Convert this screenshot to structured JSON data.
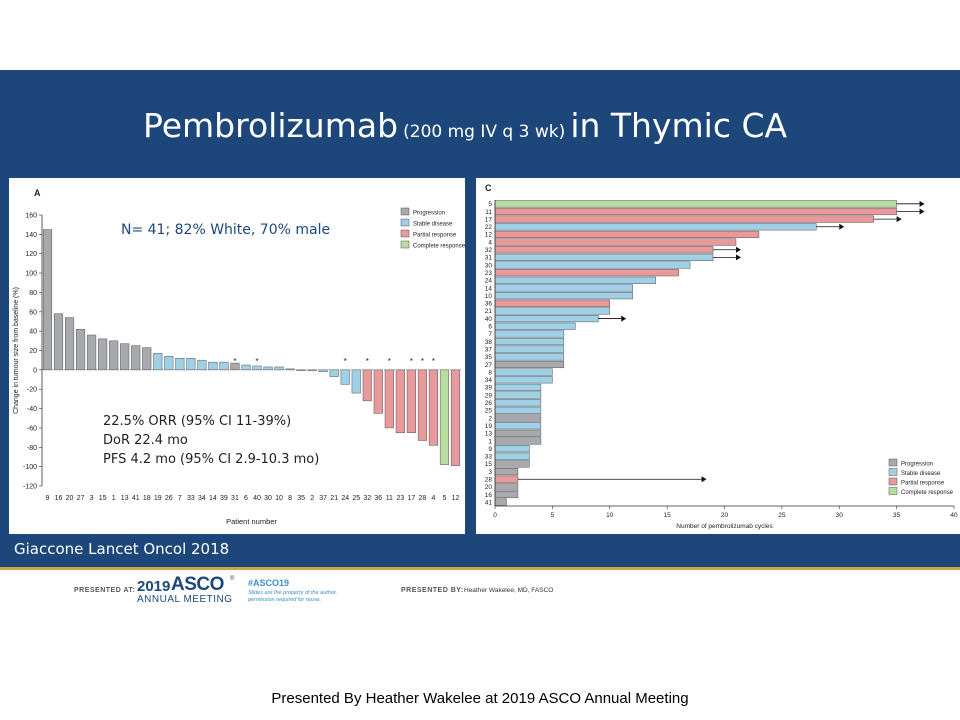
{
  "slide": {
    "title_main": "Pembrolizumab",
    "title_dose": "(200 mg IV q 3 wk)",
    "title_tail": "in Thymic CA",
    "citation": "Giaccone Lancet Oncol 2018",
    "footer": {
      "presented_at_label": "PRESENTED AT:",
      "asco_year": "2019",
      "asco_name": "ASCO",
      "asco_tm": "®",
      "asco_sub": "ANNUAL MEETING",
      "hashtag": "#ASCO19",
      "hashtag_note": "Slides are the property of the author, permission required for reuse.",
      "presented_by_label": "PRESENTED BY:",
      "presenter": "Heather Wakelee, MD, FASCO"
    },
    "caption": "Presented By Heather Wakelee at 2019 ASCO Annual Meeting",
    "annotations": {
      "n_line": "N= 41; 82% White, 70% male",
      "orr": "22.5% ORR (95% CI 11-39%)",
      "dor": "DoR 22.4 mo",
      "pfs": "PFS 4.2 mo (95% CI 2.9-10.3 mo)"
    },
    "colors": {
      "band": "#1d477a",
      "progression": "#a7a9ac",
      "stable": "#9fd0e6",
      "partial": "#e7999b",
      "complete": "#b9dca0"
    }
  },
  "chart_data": [
    {
      "type": "bar",
      "panel_label": "A",
      "ylabel": "Change in tumour size from baseline (%)",
      "xlabel": "Patient number",
      "ylim": [
        -120,
        160
      ],
      "yticks": [
        160,
        140,
        120,
        100,
        80,
        60,
        40,
        20,
        0,
        -20,
        -40,
        -60,
        -80,
        -100,
        -120
      ],
      "categories": [
        "9",
        "16",
        "20",
        "27",
        "3",
        "15",
        "1",
        "13",
        "41",
        "18",
        "19",
        "26",
        "7",
        "33",
        "34",
        "14",
        "39",
        "31",
        "6",
        "40",
        "30",
        "10",
        "8",
        "35",
        "2",
        "37",
        "21",
        "24",
        "25",
        "32",
        "36",
        "11",
        "23",
        "17",
        "28",
        "4",
        "5",
        "12"
      ],
      "values": [
        145,
        58,
        54,
        42,
        36,
        32,
        30,
        27,
        25,
        23,
        17,
        14,
        12,
        12,
        10,
        8,
        8,
        7,
        5,
        4,
        3,
        3,
        1,
        0,
        -1,
        -2,
        -7,
        -15,
        -24,
        -32,
        -45,
        -60,
        -65,
        -65,
        -73,
        -78,
        -98,
        -99
      ],
      "response": [
        "Progression",
        "Progression",
        "Progression",
        "Progression",
        "Progression",
        "Progression",
        "Progression",
        "Progression",
        "Progression",
        "Progression",
        "Stable disease",
        "Stable disease",
        "Stable disease",
        "Stable disease",
        "Stable disease",
        "Stable disease",
        "Stable disease",
        "Progression",
        "Stable disease",
        "Stable disease",
        "Stable disease",
        "Stable disease",
        "Stable disease",
        "Stable disease",
        "Stable disease",
        "Stable disease",
        "Stable disease",
        "Stable disease",
        "Stable disease",
        "Partial response",
        "Partial response",
        "Partial response",
        "Partial response",
        "Partial response",
        "Partial response",
        "Partial response",
        "Complete response",
        "Partial response"
      ],
      "asterisks": [
        "31",
        "40",
        "24",
        "32",
        "11",
        "17",
        "28",
        "4"
      ],
      "legend": [
        "Progression",
        "Stable disease",
        "Partial response",
        "Complete response"
      ],
      "legend_position": "top-right"
    },
    {
      "type": "bar",
      "orientation": "horizontal",
      "panel_label": "C",
      "xlabel": "Number of pembrolizumab cycles",
      "xlim": [
        0,
        40
      ],
      "xticks": [
        0,
        5,
        10,
        15,
        20,
        25,
        30,
        35,
        40
      ],
      "categories": [
        "5",
        "11",
        "17",
        "22",
        "12",
        "4",
        "32",
        "31",
        "30",
        "23",
        "24",
        "14",
        "10",
        "36",
        "21",
        "40",
        "6",
        "7",
        "38",
        "37",
        "35",
        "27",
        "8",
        "34",
        "39",
        "29",
        "26",
        "25",
        "2",
        "19",
        "13",
        "1",
        "9",
        "33",
        "15",
        "3",
        "28",
        "20",
        "16",
        "41"
      ],
      "values": [
        35,
        35,
        33,
        28,
        23,
        21,
        19,
        19,
        17,
        16,
        14,
        12,
        12,
        10,
        10,
        9,
        7,
        6,
        6,
        6,
        6,
        6,
        5,
        5,
        4,
        4,
        4,
        4,
        4,
        4,
        4,
        4,
        3,
        3,
        3,
        2,
        2,
        2,
        2,
        1
      ],
      "response": [
        "Complete response",
        "Partial response",
        "Partial response",
        "Stable disease",
        "Partial response",
        "Partial response",
        "Partial response",
        "Stable disease",
        "Stable disease",
        "Partial response",
        "Stable disease",
        "Stable disease",
        "Stable disease",
        "Partial response",
        "Stable disease",
        "Stable disease",
        "Stable disease",
        "Stable disease",
        "Stable disease",
        "Stable disease",
        "Stable disease",
        "Progression",
        "Stable disease",
        "Stable disease",
        "Stable disease",
        "Stable disease",
        "Stable disease",
        "Stable disease",
        "Progression",
        "Stable disease",
        "Progression",
        "Progression",
        "Stable disease",
        "Stable disease",
        "Progression",
        "Progression",
        "Partial response",
        "Progression",
        "Progression",
        "Progression"
      ],
      "ongoing": [
        "5",
        "11",
        "17",
        "22",
        "32",
        "31",
        "40",
        "28"
      ],
      "ongoing_arrow_value": {
        "28": 18
      },
      "legend": [
        "Progression",
        "Stable disease",
        "Partial response",
        "Complete response"
      ],
      "legend_position": "bottom-right"
    }
  ]
}
